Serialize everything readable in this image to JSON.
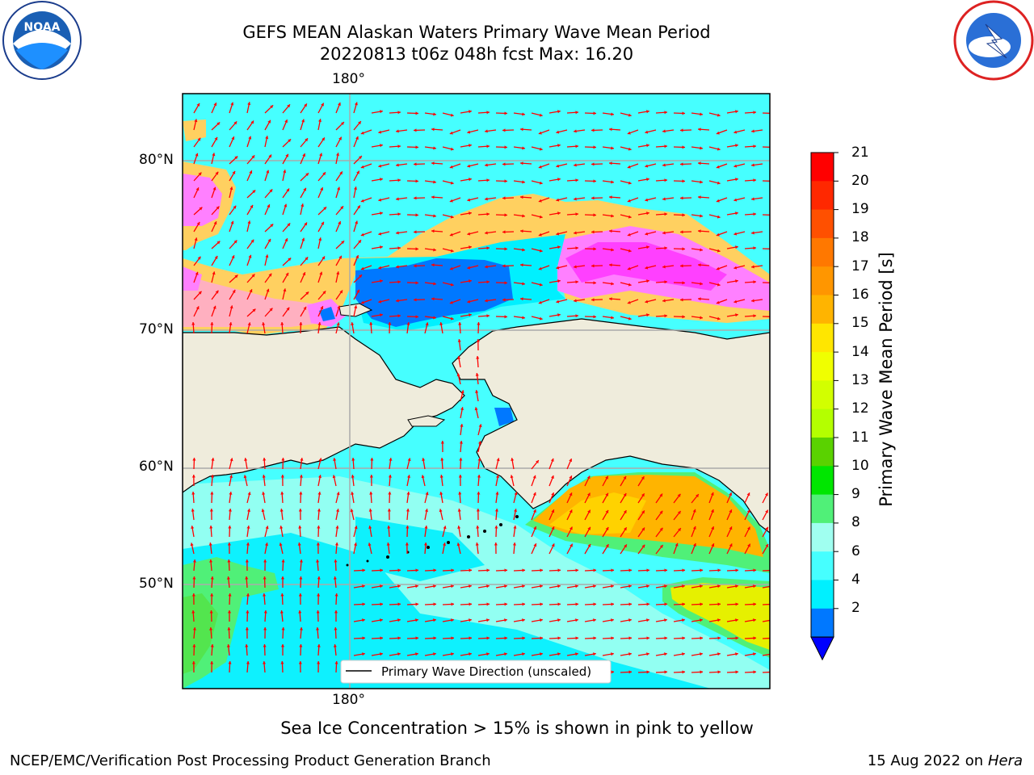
{
  "title": {
    "line1": "GEFS MEAN Alaskan Waters Primary Wave Mean Period",
    "line2": "20220813 t06z 048h fcst   Max: 16.20"
  },
  "logos": {
    "left": "NOAA",
    "right": "NATIONAL WEATHER SERVICE"
  },
  "map": {
    "lon_label_top": "180°",
    "lon_label_bottom": "180°",
    "lat_labels": [
      "80°N",
      "70°N",
      "60°N",
      "50°N"
    ],
    "legend_label": "Primary Wave Direction (unscaled)",
    "arrow_color": "#ff0000",
    "land_color": "#efecdc",
    "ice_colors": [
      "#ff40ff",
      "#ff80ff",
      "#ffb0c0",
      "#ffd060",
      "#ffe070"
    ]
  },
  "colorbar": {
    "title": "Primary Wave Mean Period [s]",
    "ticks": [
      "21",
      "20",
      "19",
      "18",
      "17",
      "16",
      "15",
      "14",
      "13",
      "12",
      "11",
      "10",
      "9",
      "8",
      "6",
      "4",
      "2"
    ],
    "colors": [
      "#ff0000",
      "#ff2800",
      "#ff5000",
      "#ff7800",
      "#ff9600",
      "#ffb400",
      "#ffe600",
      "#f0ff00",
      "#d2ff00",
      "#b4ff00",
      "#5ad200",
      "#00e600",
      "#50f078",
      "#a0fff0",
      "#46ffff",
      "#00f0ff",
      "#0078ff"
    ],
    "extend_color": "#0000ff"
  },
  "note": "Sea Ice Concentration > 15% is shown in pink to yellow",
  "footer": {
    "left": "NCEP/EMC/Verification Post Processing Product Generation Branch",
    "right_date": "15 Aug 2022 on",
    "right_machine": "Hera"
  }
}
